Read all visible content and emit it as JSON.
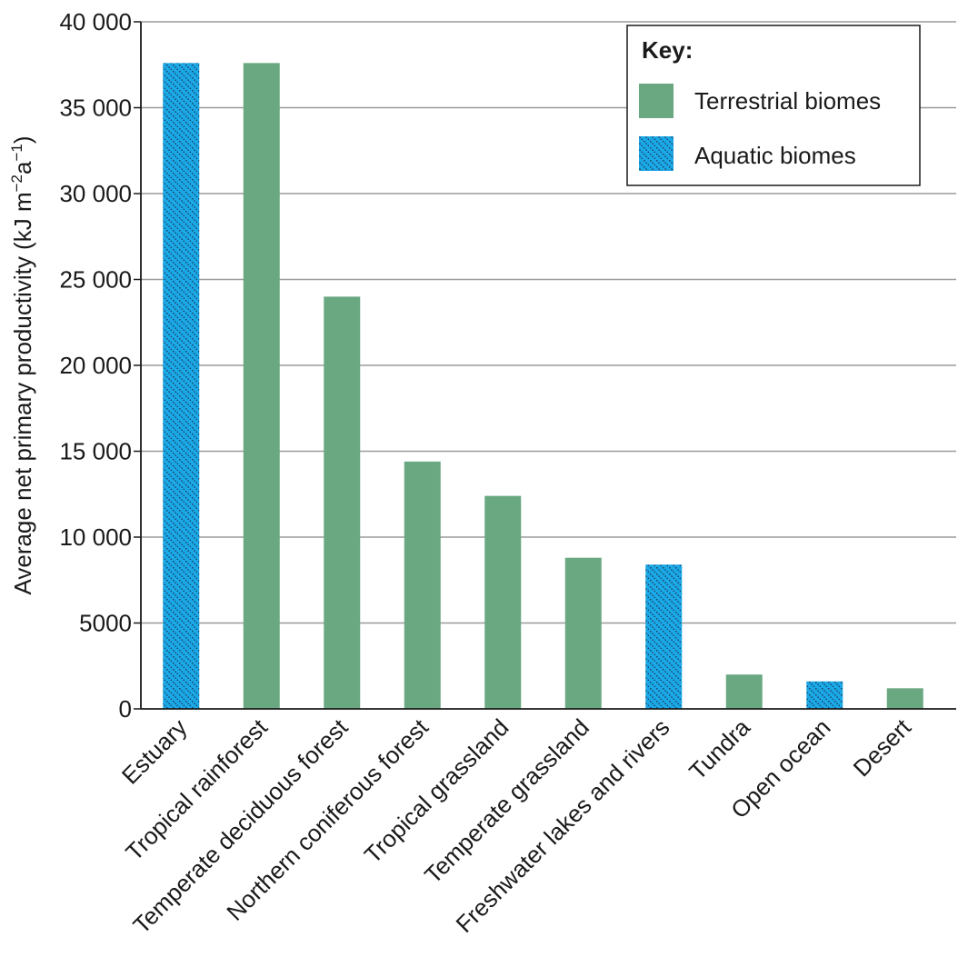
{
  "chart_data": {
    "type": "bar",
    "categories": [
      "Estuary",
      "Tropical rainforest",
      "Temperate deciduous forest",
      "Northern coniferous forest",
      "Tropical grassland",
      "Temperate grassland",
      "Freshwater lakes and rivers",
      "Tundra",
      "Open ocean",
      "Desert"
    ],
    "values": [
      37600,
      37600,
      24000,
      14400,
      12400,
      8800,
      8400,
      2000,
      1600,
      1200
    ],
    "groups": [
      "aquatic",
      "terrestrial",
      "terrestrial",
      "terrestrial",
      "terrestrial",
      "terrestrial",
      "aquatic",
      "terrestrial",
      "aquatic",
      "terrestrial"
    ],
    "ylabel_main": "Average net primary productivity (kJ m",
    "ylabel_sup1": "−2",
    "ylabel_mid": "a",
    "ylabel_sup2": "−1",
    "ylabel_end": ")",
    "ylim": [
      0,
      40000
    ],
    "yticks": [
      0,
      5000,
      10000,
      15000,
      20000,
      25000,
      30000,
      35000,
      40000
    ],
    "ytick_labels": [
      "0",
      "5000",
      "10 000",
      "15 000",
      "20 000",
      "25 000",
      "30 000",
      "35 000",
      "40 000"
    ],
    "grid": true,
    "legend": {
      "placement": "top-right",
      "title": "Key:",
      "entries": [
        {
          "group": "terrestrial",
          "label": "Terrestrial biomes"
        },
        {
          "group": "aquatic",
          "label": "Aquatic biomes"
        }
      ]
    },
    "colors": {
      "terrestrial": "#6aa882",
      "aquatic": "#1ba8e6",
      "hatch": "#1b3a57",
      "grid": "#9a9a9a",
      "axis": "#1a1a1a"
    }
  }
}
